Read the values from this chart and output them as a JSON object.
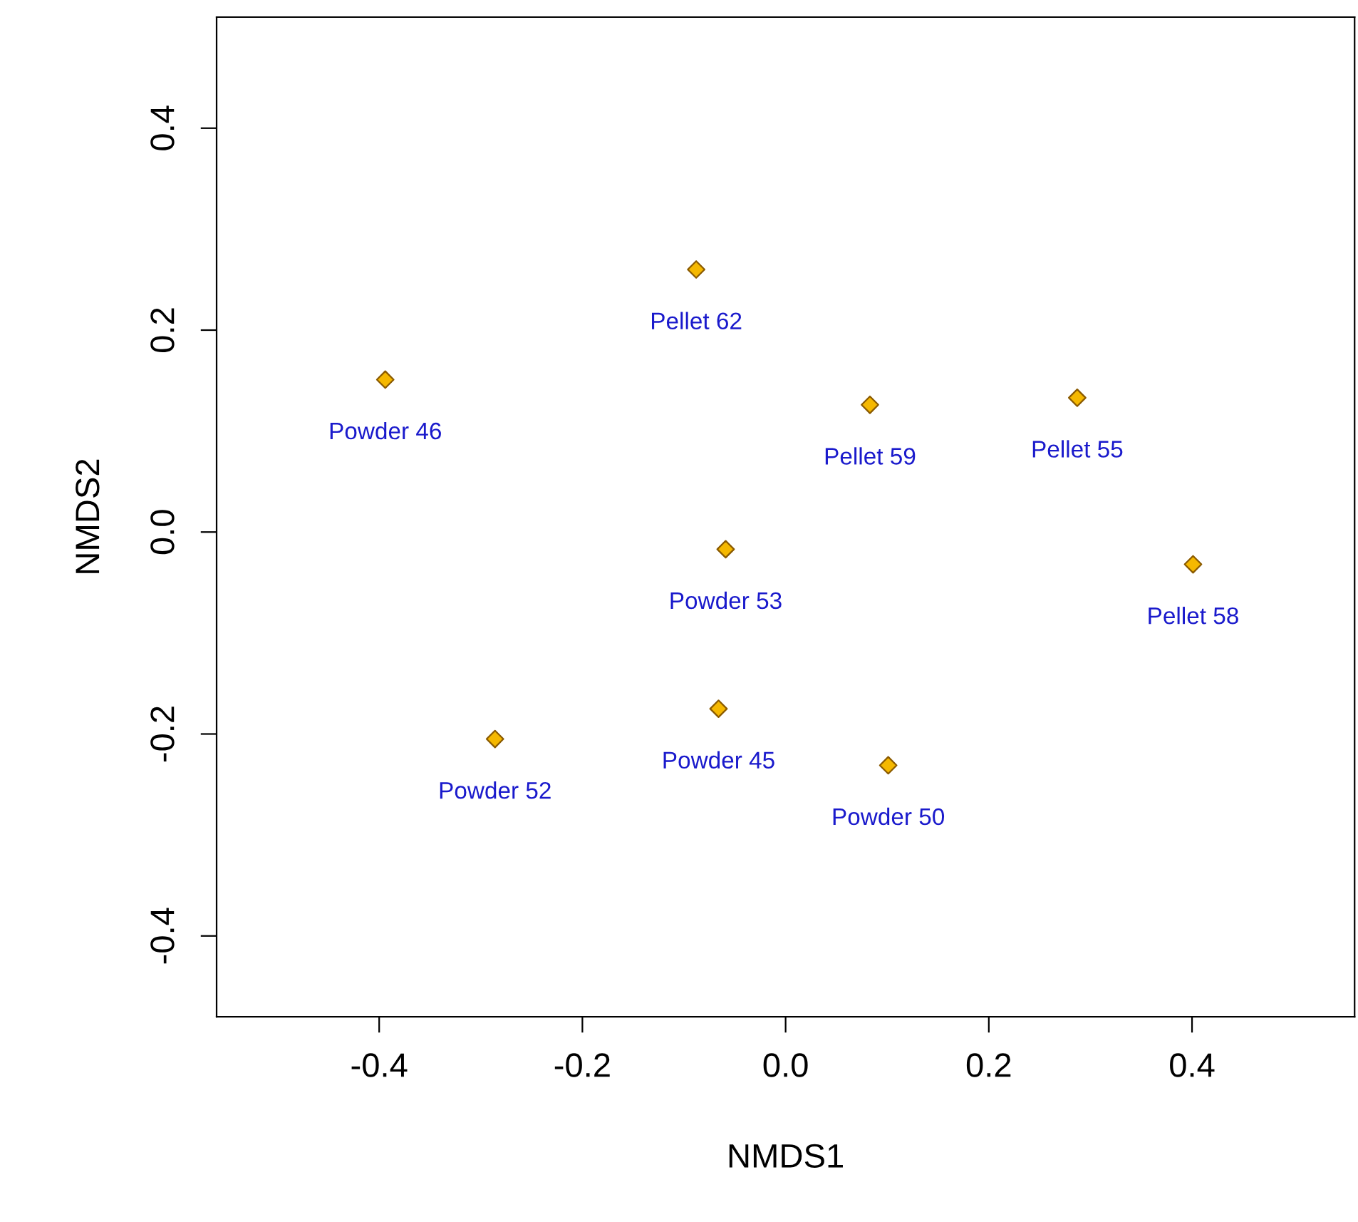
{
  "chart_data": {
    "type": "scatter",
    "xlabel": "NMDS1",
    "ylabel": "NMDS2",
    "xlim": [
      -0.56,
      0.56
    ],
    "ylim": [
      -0.48,
      0.51
    ],
    "xticks": [
      {
        "value": -0.4,
        "label": "-0.4"
      },
      {
        "value": -0.2,
        "label": "-0.2"
      },
      {
        "value": 0.0,
        "label": "0.0"
      },
      {
        "value": 0.2,
        "label": "0.2"
      },
      {
        "value": 0.4,
        "label": "0.4"
      }
    ],
    "yticks": [
      {
        "value": -0.4,
        "label": "-0.4"
      },
      {
        "value": -0.2,
        "label": "-0.2"
      },
      {
        "value": 0.0,
        "label": "0.0"
      },
      {
        "value": 0.2,
        "label": "0.2"
      },
      {
        "value": 0.4,
        "label": "0.4"
      }
    ],
    "marker": "diamond",
    "grid": false,
    "series": [
      {
        "color": "#f5b800",
        "x": [
          -0.394,
          -0.088,
          0.083,
          0.287,
          0.401,
          -0.059,
          -0.286,
          -0.066,
          0.101
        ],
        "values": [
          0.151,
          0.26,
          0.126,
          0.133,
          -0.032,
          -0.017,
          -0.205,
          -0.175,
          -0.231
        ]
      }
    ],
    "annotations": [
      {
        "text": "Powder 46",
        "x": -0.394,
        "y": 0.151
      },
      {
        "text": "Pellet 62",
        "x": -0.088,
        "y": 0.26
      },
      {
        "text": "Pellet 59",
        "x": 0.083,
        "y": 0.126
      },
      {
        "text": "Pellet 55",
        "x": 0.287,
        "y": 0.133
      },
      {
        "text": "Pellet 58",
        "x": 0.401,
        "y": -0.032
      },
      {
        "text": "Powder 53",
        "x": -0.059,
        "y": -0.017
      },
      {
        "text": "Powder 52",
        "x": -0.286,
        "y": -0.205
      },
      {
        "text": "Powder 45",
        "x": -0.066,
        "y": -0.175
      },
      {
        "text": "Powder 50",
        "x": 0.101,
        "y": -0.231
      }
    ]
  }
}
